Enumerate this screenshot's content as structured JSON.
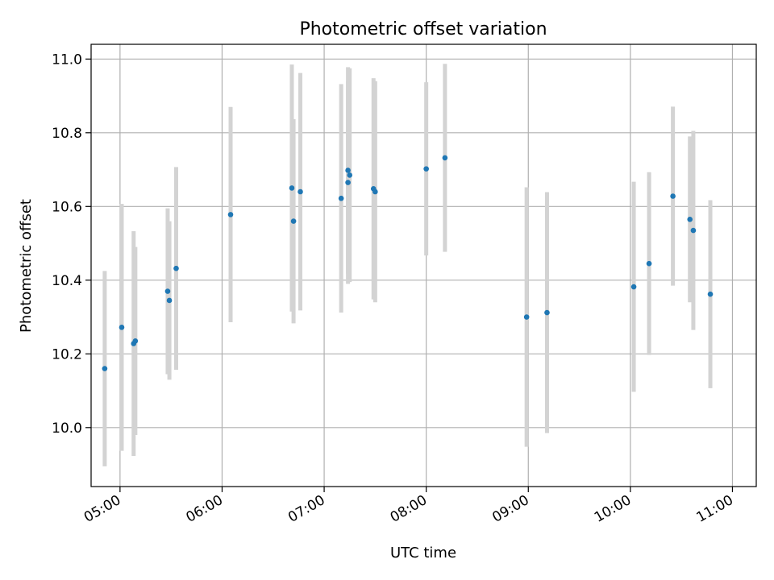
{
  "chart_data": {
    "type": "scatter",
    "title": "Photometric offset variation",
    "xlabel": "UTC time",
    "ylabel": "Photometric offset",
    "x_ticks": [
      "05:00",
      "06:00",
      "07:00",
      "08:00",
      "09:00",
      "10:00",
      "11:00"
    ],
    "y_ticks": [
      "10.0",
      "10.2",
      "10.4",
      "10.6",
      "10.8",
      "11.0"
    ],
    "xlim": [
      "04:43",
      "11:14"
    ],
    "ylim": [
      9.84,
      11.04
    ],
    "grid": true,
    "colors": {
      "point": "#1f77b4",
      "errorbar": "#d3d3d3",
      "grid": "#b0b0b0"
    },
    "points": [
      {
        "t": "04:51",
        "y": 10.16,
        "err": 0.265
      },
      {
        "t": "05:01",
        "y": 10.272,
        "err": 0.335
      },
      {
        "t": "05:08",
        "y": 10.228,
        "err": 0.305
      },
      {
        "t": "05:09",
        "y": 10.235,
        "err": 0.255
      },
      {
        "t": "05:28",
        "y": 10.37,
        "err": 0.225
      },
      {
        "t": "05:29",
        "y": 10.345,
        "err": 0.215
      },
      {
        "t": "05:33",
        "y": 10.432,
        "err": 0.275
      },
      {
        "t": "06:05",
        "y": 10.578,
        "err": 0.292
      },
      {
        "t": "06:41",
        "y": 10.65,
        "err": 0.335
      },
      {
        "t": "06:42",
        "y": 10.56,
        "err": 0.277
      },
      {
        "t": "06:46",
        "y": 10.64,
        "err": 0.322
      },
      {
        "t": "07:10",
        "y": 10.622,
        "err": 0.31
      },
      {
        "t": "07:14",
        "y": 10.698,
        "err": 0.28
      },
      {
        "t": "07:14",
        "y": 10.665,
        "err": 0.275
      },
      {
        "t": "07:15",
        "y": 10.685,
        "err": 0.29
      },
      {
        "t": "07:29",
        "y": 10.648,
        "err": 0.3
      },
      {
        "t": "07:30",
        "y": 10.64,
        "err": 0.3
      },
      {
        "t": "08:00",
        "y": 10.702,
        "err": 0.235
      },
      {
        "t": "08:11",
        "y": 10.732,
        "err": 0.255
      },
      {
        "t": "08:59",
        "y": 10.3,
        "err": 0.352
      },
      {
        "t": "09:11",
        "y": 10.312,
        "err": 0.327
      },
      {
        "t": "10:02",
        "y": 10.382,
        "err": 0.285
      },
      {
        "t": "10:11",
        "y": 10.445,
        "err": 0.248
      },
      {
        "t": "10:25",
        "y": 10.628,
        "err": 0.243
      },
      {
        "t": "10:35",
        "y": 10.565,
        "err": 0.225
      },
      {
        "t": "10:37",
        "y": 10.535,
        "err": 0.27
      },
      {
        "t": "10:47",
        "y": 10.362,
        "err": 0.255
      }
    ]
  }
}
